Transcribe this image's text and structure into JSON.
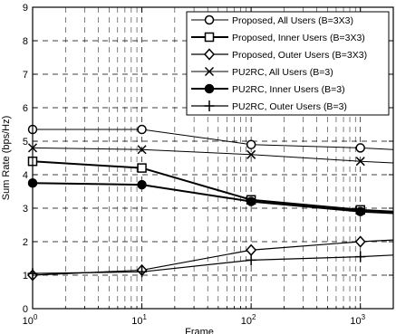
{
  "chart_data": {
    "type": "line",
    "title": "",
    "xlabel": "Frame",
    "ylabel": "Sum Rate (bps/Hz)",
    "xscale": "log",
    "xlim": [
      1,
      2000
    ],
    "ylim": [
      0,
      9
    ],
    "grid": true,
    "legend_position": "top-right",
    "x": [
      1,
      10,
      100,
      1000,
      2000
    ],
    "x_ticks": [
      {
        "value": 1,
        "base": "10",
        "exp": "0"
      },
      {
        "value": 10,
        "base": "10",
        "exp": "1"
      },
      {
        "value": 100,
        "base": "10",
        "exp": "2"
      },
      {
        "value": 1000,
        "base": "10",
        "exp": "3"
      }
    ],
    "y_ticks": [
      "0",
      "1",
      "2",
      "3",
      "4",
      "5",
      "6",
      "7",
      "8",
      "9"
    ],
    "series": [
      {
        "name": "Proposed, All Users (B=3X3)",
        "marker": "circle-open",
        "values": [
          5.35,
          5.35,
          4.9,
          4.8,
          4.75
        ]
      },
      {
        "name": "Proposed, Inner Users (B=3X3)",
        "marker": "square-open",
        "values": [
          4.4,
          4.2,
          3.25,
          2.95,
          2.9
        ]
      },
      {
        "name": "Proposed, Outer Users (B=3X3)",
        "marker": "diamond-open",
        "values": [
          1.0,
          1.15,
          1.75,
          2.0,
          2.05
        ]
      },
      {
        "name": "PU2RC, All Users (B=3)",
        "marker": "x",
        "values": [
          4.8,
          4.75,
          4.6,
          4.4,
          4.35
        ]
      },
      {
        "name": "PU2RC, Inner Users (B=3)",
        "marker": "circle-filled",
        "values": [
          3.75,
          3.7,
          3.2,
          2.9,
          2.85
        ]
      },
      {
        "name": "PU2RC, Outer Users (B=3)",
        "marker": "plus",
        "values": [
          1.05,
          1.1,
          1.45,
          1.55,
          1.6
        ]
      }
    ]
  }
}
